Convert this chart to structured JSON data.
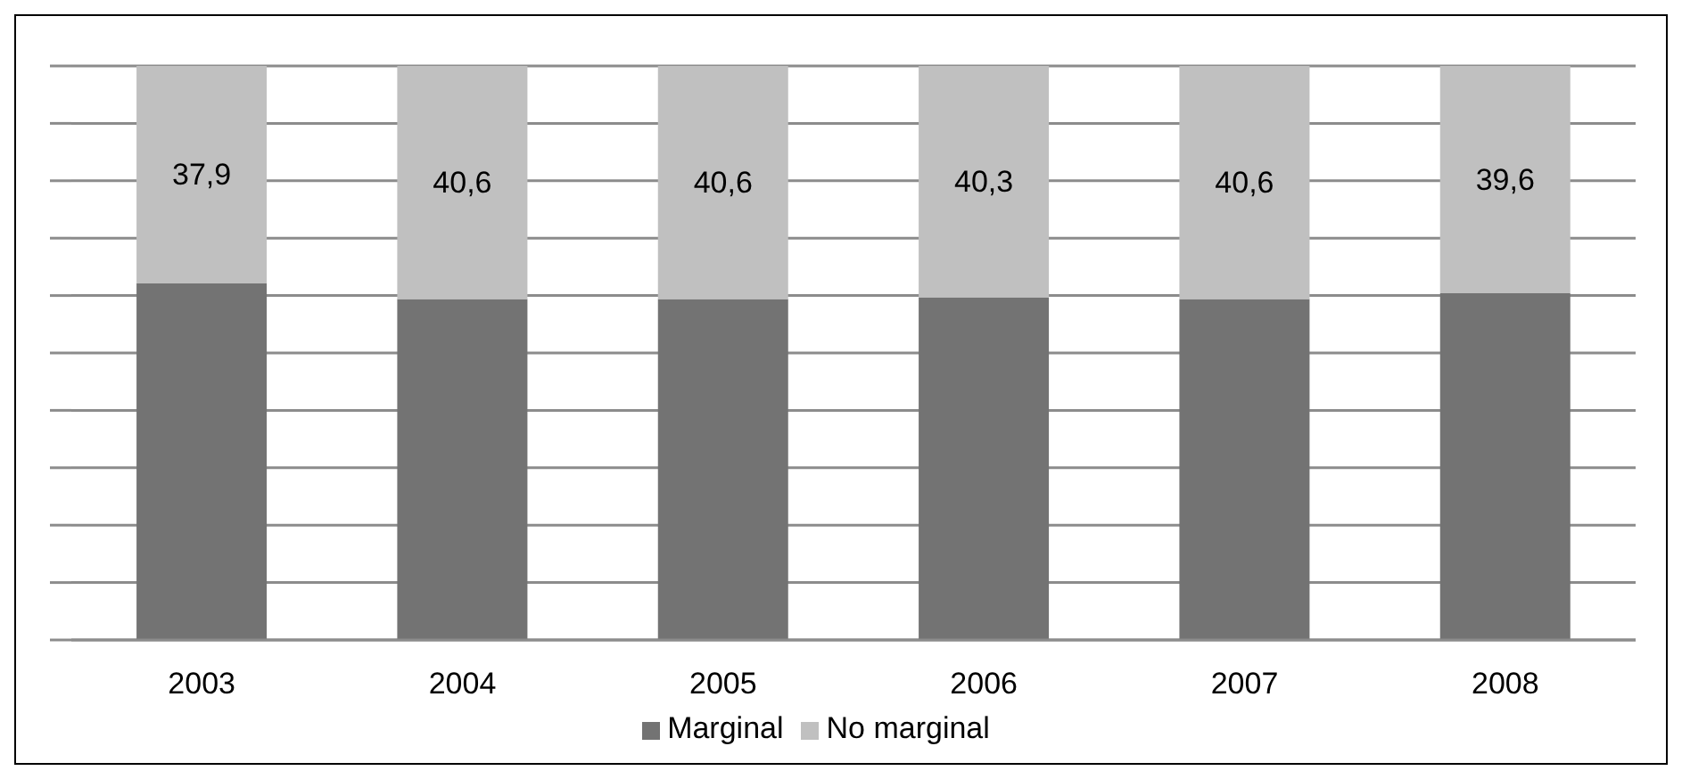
{
  "chart_data": {
    "type": "bar",
    "stacked": true,
    "categories": [
      "2003",
      "2004",
      "2005",
      "2006",
      "2007",
      "2008"
    ],
    "series": [
      {
        "name": "Marginal",
        "color": "#737373",
        "values": [
          62.1,
          59.4,
          59.4,
          59.7,
          59.4,
          60.4
        ]
      },
      {
        "name": "No marginal",
        "color": "#c0c0c0",
        "values": [
          37.9,
          40.6,
          40.6,
          40.3,
          40.6,
          39.6
        ],
        "value_labels": [
          "37,9",
          "40,6",
          "40,6",
          "40,3",
          "40,6",
          "39,6"
        ]
      }
    ],
    "ylim": [
      0,
      100
    ],
    "yticks": [
      {
        "value": 0,
        "label": null
      },
      {
        "value": 10,
        "label": null
      },
      {
        "value": 20,
        "label": null
      },
      {
        "value": 30,
        "label": null
      },
      {
        "value": 40,
        "label": null
      },
      {
        "value": 50,
        "label": null
      },
      {
        "value": 60,
        "label": null
      },
      {
        "value": 70,
        "label": null
      },
      {
        "value": 80,
        "label": null
      },
      {
        "value": 90,
        "label": null
      },
      {
        "value": 100,
        "label": null
      }
    ],
    "grid": "y",
    "legend": "bottom",
    "tick_labels": "x"
  }
}
